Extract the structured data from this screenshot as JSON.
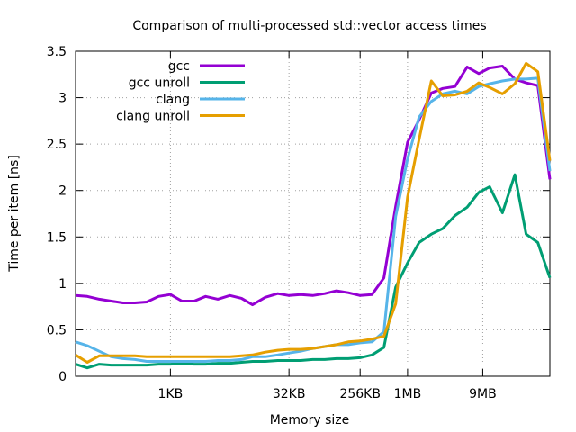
{
  "chart_data": {
    "type": "line",
    "title": "Comparison of multi-processed std::vector access times",
    "xlabel": "Memory size",
    "ylabel": "Time per item [ns]",
    "x_scale": "log2",
    "xlim": [
      "64B",
      "64MB"
    ],
    "ylim": [
      0,
      3.5
    ],
    "x_ticks": [
      {
        "label": "1KB",
        "value": "1KB"
      },
      {
        "label": "32KB",
        "value": "32KB"
      },
      {
        "label": "256KB",
        "value": "256KB"
      },
      {
        "label": "1MB",
        "value": "1MB"
      },
      {
        "label": "9MB",
        "value": "9MB"
      }
    ],
    "y_ticks": [
      "0",
      "0.5",
      "1",
      "1.5",
      "2",
      "2.5",
      "3",
      "3.5"
    ],
    "grid": true,
    "legend_position": "top-left",
    "x": [
      "64B",
      "90B",
      "128B",
      "181B",
      "256B",
      "362B",
      "512B",
      "724B",
      "1KB",
      "1.4KB",
      "2KB",
      "2.8KB",
      "4KB",
      "5.7KB",
      "8KB",
      "11KB",
      "16KB",
      "23KB",
      "32KB",
      "45KB",
      "64KB",
      "91KB",
      "128KB",
      "181KB",
      "256KB",
      "362KB",
      "512KB",
      "724KB",
      "1MB",
      "1.4MB",
      "2MB",
      "2.8MB",
      "4MB",
      "5.7MB",
      "8MB",
      "11MB",
      "16MB",
      "23MB",
      "32MB",
      "45MB",
      "64MB"
    ],
    "series": [
      {
        "name": "gcc",
        "color": "#9400d3",
        "values": [
          0.87,
          0.86,
          0.83,
          0.81,
          0.79,
          0.79,
          0.8,
          0.86,
          0.88,
          0.81,
          0.81,
          0.86,
          0.83,
          0.87,
          0.84,
          0.77,
          0.85,
          0.89,
          0.87,
          0.88,
          0.87,
          0.89,
          0.92,
          0.9,
          0.87,
          0.88,
          1.06,
          1.83,
          2.52,
          2.76,
          3.05,
          3.1,
          3.12,
          3.33,
          3.26,
          3.32,
          3.34,
          3.2,
          3.16,
          3.13,
          2.12
        ]
      },
      {
        "name": "gcc unroll",
        "color": "#009e73",
        "values": [
          0.13,
          0.09,
          0.13,
          0.12,
          0.12,
          0.12,
          0.12,
          0.13,
          0.13,
          0.14,
          0.13,
          0.13,
          0.14,
          0.14,
          0.15,
          0.16,
          0.16,
          0.17,
          0.17,
          0.17,
          0.18,
          0.18,
          0.19,
          0.19,
          0.2,
          0.23,
          0.31,
          0.96,
          1.22,
          1.44,
          1.53,
          1.59,
          1.73,
          1.82,
          1.98,
          2.04,
          1.76,
          2.17,
          1.53,
          1.44,
          1.06
        ]
      },
      {
        "name": "clang",
        "color": "#56b4e9",
        "values": [
          0.37,
          0.33,
          0.27,
          0.21,
          0.19,
          0.18,
          0.16,
          0.16,
          0.16,
          0.16,
          0.16,
          0.16,
          0.17,
          0.17,
          0.18,
          0.21,
          0.21,
          0.23,
          0.25,
          0.27,
          0.3,
          0.32,
          0.34,
          0.34,
          0.36,
          0.37,
          0.48,
          1.72,
          2.34,
          2.79,
          2.96,
          3.04,
          3.07,
          3.04,
          3.12,
          3.15,
          3.18,
          3.2,
          3.2,
          3.21,
          2.21
        ]
      },
      {
        "name": "clang unroll",
        "color": "#e69f00",
        "values": [
          0.23,
          0.15,
          0.22,
          0.22,
          0.22,
          0.22,
          0.21,
          0.21,
          0.21,
          0.21,
          0.21,
          0.21,
          0.21,
          0.21,
          0.22,
          0.23,
          0.26,
          0.28,
          0.29,
          0.29,
          0.3,
          0.32,
          0.34,
          0.37,
          0.38,
          0.4,
          0.43,
          0.78,
          1.93,
          2.55,
          3.18,
          3.02,
          3.03,
          3.07,
          3.16,
          3.11,
          3.04,
          3.15,
          3.37,
          3.28,
          2.32
        ]
      }
    ]
  }
}
